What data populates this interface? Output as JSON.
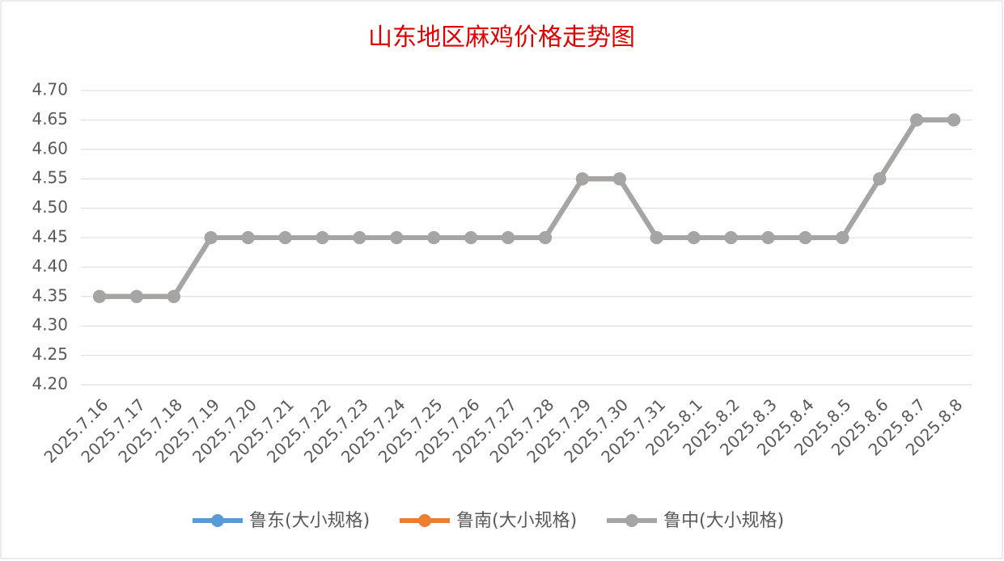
{
  "chart_data": {
    "type": "line",
    "title": "山东地区麻鸡价格走势图",
    "categories": [
      "2025.7.16",
      "2025.7.17",
      "2025.7.18",
      "2025.7.19",
      "2025.7.20",
      "2025.7.21",
      "2025.7.22",
      "2025.7.23",
      "2025.7.24",
      "2025.7.25",
      "2025.7.26",
      "2025.7.27",
      "2025.7.28",
      "2025.7.29",
      "2025.7.30",
      "2025.7.31",
      "2025.8.1",
      "2025.8.2",
      "2025.8.3",
      "2025.8.4",
      "2025.8.5",
      "2025.8.6",
      "2025.8.7",
      "2025.8.8"
    ],
    "series": [
      {
        "name": "鲁东(大小规格)",
        "color": "#5b9bd5",
        "values": [
          4.35,
          4.35,
          4.35,
          4.45,
          4.45,
          4.45,
          4.45,
          4.45,
          4.45,
          4.45,
          4.45,
          4.45,
          4.45,
          4.55,
          4.55,
          4.45,
          4.45,
          4.45,
          4.45,
          4.45,
          4.45,
          4.55,
          4.65,
          4.65
        ]
      },
      {
        "name": "鲁南(大小规格)",
        "color": "#ed7d31",
        "values": [
          4.35,
          4.35,
          4.35,
          4.45,
          4.45,
          4.45,
          4.45,
          4.45,
          4.45,
          4.45,
          4.45,
          4.45,
          4.45,
          4.55,
          4.55,
          4.45,
          4.45,
          4.45,
          4.45,
          4.45,
          4.45,
          4.55,
          4.65,
          4.65
        ]
      },
      {
        "name": "鲁中(大小规格)",
        "color": "#a5a5a5",
        "values": [
          4.35,
          4.35,
          4.35,
          4.45,
          4.45,
          4.45,
          4.45,
          4.45,
          4.45,
          4.45,
          4.45,
          4.45,
          4.45,
          4.55,
          4.55,
          4.45,
          4.45,
          4.45,
          4.45,
          4.45,
          4.45,
          4.55,
          4.65,
          4.65
        ]
      }
    ],
    "ylim": [
      4.2,
      4.7
    ],
    "yticks": [
      {
        "value": 4.2,
        "label": "4.20"
      },
      4.25,
      {
        "value": 4.3,
        "label": "4.30"
      },
      4.35,
      {
        "value": 4.4,
        "label": "4.40"
      },
      4.45,
      {
        "value": 4.5,
        "label": "4.50"
      },
      4.55,
      {
        "value": 4.6,
        "label": "4.60"
      },
      4.65,
      {
        "value": 4.7,
        "label": "4.70"
      }
    ],
    "grid": true,
    "legend": "bottom"
  }
}
